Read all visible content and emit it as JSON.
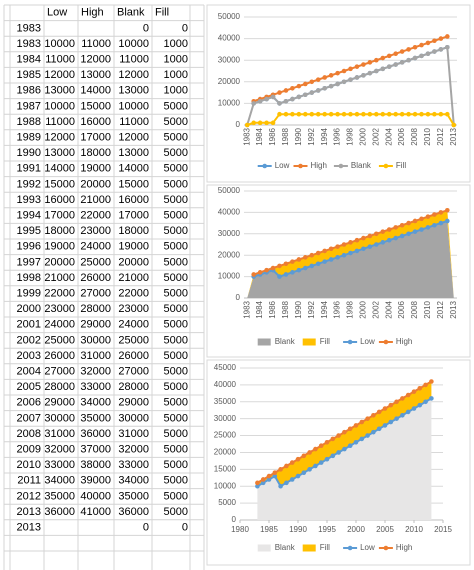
{
  "table": {
    "header": [
      null,
      "Low",
      "High",
      "Blank",
      "Fill"
    ],
    "rows": [
      [
        1983,
        null,
        null,
        0,
        0
      ],
      [
        1983,
        10000,
        11000,
        10000,
        1000
      ],
      [
        1984,
        11000,
        12000,
        11000,
        1000
      ],
      [
        1985,
        12000,
        13000,
        12000,
        1000
      ],
      [
        1986,
        13000,
        14000,
        13000,
        1000
      ],
      [
        1987,
        10000,
        15000,
        10000,
        5000
      ],
      [
        1988,
        11000,
        16000,
        11000,
        5000
      ],
      [
        1989,
        12000,
        17000,
        12000,
        5000
      ],
      [
        1990,
        13000,
        18000,
        13000,
        5000
      ],
      [
        1991,
        14000,
        19000,
        14000,
        5000
      ],
      [
        1992,
        15000,
        20000,
        15000,
        5000
      ],
      [
        1993,
        16000,
        21000,
        16000,
        5000
      ],
      [
        1994,
        17000,
        22000,
        17000,
        5000
      ],
      [
        1995,
        18000,
        23000,
        18000,
        5000
      ],
      [
        1996,
        19000,
        24000,
        19000,
        5000
      ],
      [
        1997,
        20000,
        25000,
        20000,
        5000
      ],
      [
        1998,
        21000,
        26000,
        21000,
        5000
      ],
      [
        1999,
        22000,
        27000,
        22000,
        5000
      ],
      [
        2000,
        23000,
        28000,
        23000,
        5000
      ],
      [
        2001,
        24000,
        29000,
        24000,
        5000
      ],
      [
        2002,
        25000,
        30000,
        25000,
        5000
      ],
      [
        2003,
        26000,
        31000,
        26000,
        5000
      ],
      [
        2004,
        27000,
        32000,
        27000,
        5000
      ],
      [
        2005,
        28000,
        33000,
        28000,
        5000
      ],
      [
        2006,
        29000,
        34000,
        29000,
        5000
      ],
      [
        2007,
        30000,
        35000,
        30000,
        5000
      ],
      [
        2008,
        31000,
        36000,
        31000,
        5000
      ],
      [
        2009,
        32000,
        37000,
        32000,
        5000
      ],
      [
        2010,
        33000,
        38000,
        33000,
        5000
      ],
      [
        2011,
        34000,
        39000,
        34000,
        5000
      ],
      [
        2012,
        35000,
        40000,
        35000,
        5000
      ],
      [
        2013,
        36000,
        41000,
        36000,
        5000
      ],
      [
        2013,
        null,
        null,
        0,
        0
      ]
    ]
  },
  "chart_data": [
    {
      "type": "line",
      "grid": true,
      "legend": "bottom",
      "categories": [
        "1983",
        null,
        "1984",
        null,
        "1986",
        null,
        "1988",
        null,
        "1990",
        null,
        "1992",
        null,
        "1994",
        null,
        "1996",
        null,
        "1998",
        null,
        "2000",
        null,
        "2002",
        null,
        "2004",
        null,
        "2006",
        null,
        "2008",
        null,
        "2010",
        null,
        "2012",
        null,
        "2013"
      ],
      "ylim": [
        0,
        50000
      ],
      "yticks": [
        0,
        10000,
        20000,
        30000,
        40000,
        50000
      ],
      "series": [
        {
          "name": "Low",
          "color": "#5b9bd5",
          "mark": "line",
          "values": [
            null,
            10000,
            11000,
            12000,
            13000,
            10000,
            11000,
            12000,
            13000,
            14000,
            15000,
            16000,
            17000,
            18000,
            19000,
            20000,
            21000,
            22000,
            23000,
            24000,
            25000,
            26000,
            27000,
            28000,
            29000,
            30000,
            31000,
            32000,
            33000,
            34000,
            35000,
            36000,
            null
          ]
        },
        {
          "name": "High",
          "color": "#ed7d31",
          "mark": "line",
          "values": [
            null,
            11000,
            12000,
            13000,
            14000,
            15000,
            16000,
            17000,
            18000,
            19000,
            20000,
            21000,
            22000,
            23000,
            24000,
            25000,
            26000,
            27000,
            28000,
            29000,
            30000,
            31000,
            32000,
            33000,
            34000,
            35000,
            36000,
            37000,
            38000,
            39000,
            40000,
            41000,
            null
          ]
        },
        {
          "name": "Blank",
          "color": "#a5a5a5",
          "mark": "line",
          "values": [
            0,
            10000,
            11000,
            12000,
            13000,
            10000,
            11000,
            12000,
            13000,
            14000,
            15000,
            16000,
            17000,
            18000,
            19000,
            20000,
            21000,
            22000,
            23000,
            24000,
            25000,
            26000,
            27000,
            28000,
            29000,
            30000,
            31000,
            32000,
            33000,
            34000,
            35000,
            36000,
            0
          ]
        },
        {
          "name": "Fill",
          "color": "#ffc000",
          "mark": "line",
          "values": [
            0,
            1000,
            1000,
            1000,
            1000,
            5000,
            5000,
            5000,
            5000,
            5000,
            5000,
            5000,
            5000,
            5000,
            5000,
            5000,
            5000,
            5000,
            5000,
            5000,
            5000,
            5000,
            5000,
            5000,
            5000,
            5000,
            5000,
            5000,
            5000,
            5000,
            5000,
            5000,
            0
          ]
        }
      ]
    },
    {
      "type": "area",
      "grid": true,
      "legend": "bottom",
      "categories": [
        "1983",
        null,
        "1984",
        null,
        "1986",
        null,
        "1988",
        null,
        "1990",
        null,
        "1992",
        null,
        "1994",
        null,
        "1996",
        null,
        "1998",
        null,
        "2000",
        null,
        "2002",
        null,
        "2004",
        null,
        "2006",
        null,
        "2008",
        null,
        "2010",
        null,
        "2012",
        null,
        "2013"
      ],
      "ylim": [
        0,
        50000
      ],
      "yticks": [
        0,
        10000,
        20000,
        30000,
        40000,
        50000
      ],
      "series": [
        {
          "name": "Blank",
          "color": "#a5a5a5",
          "mark": "area",
          "values": [
            0,
            10000,
            11000,
            12000,
            13000,
            10000,
            11000,
            12000,
            13000,
            14000,
            15000,
            16000,
            17000,
            18000,
            19000,
            20000,
            21000,
            22000,
            23000,
            24000,
            25000,
            26000,
            27000,
            28000,
            29000,
            30000,
            31000,
            32000,
            33000,
            34000,
            35000,
            36000,
            0
          ]
        },
        {
          "name": "Fill",
          "color": "#ffc000",
          "mark": "area",
          "values": [
            0,
            1000,
            1000,
            1000,
            1000,
            5000,
            5000,
            5000,
            5000,
            5000,
            5000,
            5000,
            5000,
            5000,
            5000,
            5000,
            5000,
            5000,
            5000,
            5000,
            5000,
            5000,
            5000,
            5000,
            5000,
            5000,
            5000,
            5000,
            5000,
            5000,
            5000,
            5000,
            0
          ]
        },
        {
          "name": "Low",
          "color": "#5b9bd5",
          "mark": "line",
          "values": [
            null,
            10000,
            11000,
            12000,
            13000,
            10000,
            11000,
            12000,
            13000,
            14000,
            15000,
            16000,
            17000,
            18000,
            19000,
            20000,
            21000,
            22000,
            23000,
            24000,
            25000,
            26000,
            27000,
            28000,
            29000,
            30000,
            31000,
            32000,
            33000,
            34000,
            35000,
            36000,
            null
          ]
        },
        {
          "name": "High",
          "color": "#ed7d31",
          "mark": "line",
          "values": [
            null,
            11000,
            12000,
            13000,
            14000,
            15000,
            16000,
            17000,
            18000,
            19000,
            20000,
            21000,
            22000,
            23000,
            24000,
            25000,
            26000,
            27000,
            28000,
            29000,
            30000,
            31000,
            32000,
            33000,
            34000,
            35000,
            36000,
            37000,
            38000,
            39000,
            40000,
            41000,
            null
          ]
        }
      ]
    },
    {
      "type": "scatter",
      "grid": true,
      "legend": "bottom",
      "x": [
        1983,
        1983,
        1984,
        1985,
        1986,
        1987,
        1988,
        1989,
        1990,
        1991,
        1992,
        1993,
        1994,
        1995,
        1996,
        1997,
        1998,
        1999,
        2000,
        2001,
        2002,
        2003,
        2004,
        2005,
        2006,
        2007,
        2008,
        2009,
        2010,
        2011,
        2012,
        2013,
        2013
      ],
      "xlim": [
        1980,
        2015
      ],
      "xticks": [
        1980,
        1985,
        1990,
        1995,
        2000,
        2005,
        2010,
        2015
      ],
      "ylim": [
        0,
        45000
      ],
      "yticks": [
        0,
        5000,
        10000,
        15000,
        20000,
        25000,
        30000,
        35000,
        40000,
        45000
      ],
      "series": [
        {
          "name": "Blank",
          "color": "#e7e6e6",
          "mark": "area",
          "values": [
            0,
            10000,
            11000,
            12000,
            13000,
            10000,
            11000,
            12000,
            13000,
            14000,
            15000,
            16000,
            17000,
            18000,
            19000,
            20000,
            21000,
            22000,
            23000,
            24000,
            25000,
            26000,
            27000,
            28000,
            29000,
            30000,
            31000,
            32000,
            33000,
            34000,
            35000,
            36000,
            0
          ]
        },
        {
          "name": "Fill",
          "color": "#ffc000",
          "mark": "area",
          "values": [
            0,
            1000,
            1000,
            1000,
            1000,
            5000,
            5000,
            5000,
            5000,
            5000,
            5000,
            5000,
            5000,
            5000,
            5000,
            5000,
            5000,
            5000,
            5000,
            5000,
            5000,
            5000,
            5000,
            5000,
            5000,
            5000,
            5000,
            5000,
            5000,
            5000,
            5000,
            5000,
            0
          ]
        },
        {
          "name": "Low",
          "color": "#5b9bd5",
          "mark": "line",
          "values": [
            null,
            10000,
            11000,
            12000,
            13000,
            10000,
            11000,
            12000,
            13000,
            14000,
            15000,
            16000,
            17000,
            18000,
            19000,
            20000,
            21000,
            22000,
            23000,
            24000,
            25000,
            26000,
            27000,
            28000,
            29000,
            30000,
            31000,
            32000,
            33000,
            34000,
            35000,
            36000,
            null
          ]
        },
        {
          "name": "High",
          "color": "#ed7d31",
          "mark": "line",
          "values": [
            null,
            11000,
            12000,
            13000,
            14000,
            15000,
            16000,
            17000,
            18000,
            19000,
            20000,
            21000,
            22000,
            23000,
            24000,
            25000,
            26000,
            27000,
            28000,
            29000,
            30000,
            31000,
            32000,
            33000,
            34000,
            35000,
            36000,
            37000,
            38000,
            39000,
            40000,
            41000,
            null
          ]
        }
      ]
    }
  ]
}
